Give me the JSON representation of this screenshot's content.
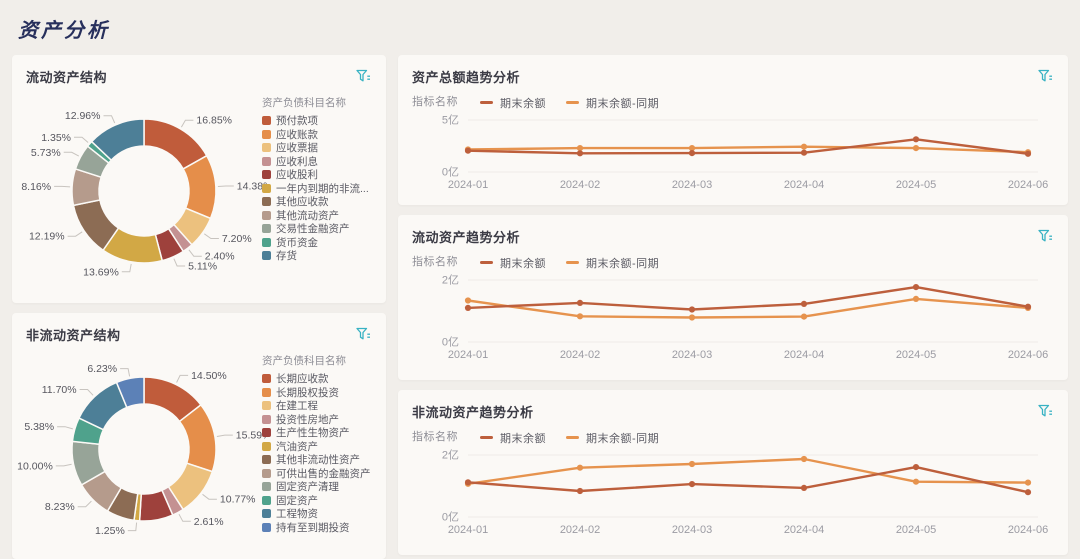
{
  "page": {
    "title": "资产分析"
  },
  "colors": {
    "background": "#f1eeea",
    "card": "#fbf9f6",
    "page_title": "#272f5c",
    "card_title": "#3b3b45",
    "accent_teal": "#38b2c3",
    "axis_label": "#9b9ba3",
    "pct_label": "#56565e",
    "legend_text": "#5b5b64",
    "legend_title_text": "#8d8d95",
    "grid_line": "#efece8",
    "leader_line": "#c8c4bf"
  },
  "chart_data": [
    {
      "type": "pie",
      "id": "current-asset-structure",
      "title": "流动资产结构",
      "legend_title": "资产负债科目名称",
      "slices": [
        {
          "label": "预付款项",
          "value": 16.85,
          "pct": "16.85%",
          "color": "#c05c3b",
          "pct_visible": true
        },
        {
          "label": "应收账款",
          "value": 14.38,
          "pct": "14.38%",
          "color": "#e58e4a",
          "pct_visible": true
        },
        {
          "label": "应收票据",
          "value": 7.2,
          "pct": "7.20%",
          "color": "#ecc17e",
          "pct_visible": true
        },
        {
          "label": "应收利息",
          "value": 2.4,
          "pct": "2.40%",
          "color": "#c49192",
          "pct_visible": true
        },
        {
          "label": "应收股利",
          "value": 5.11,
          "pct": "5.11%",
          "color": "#9e413c",
          "pct_visible": true
        },
        {
          "label": "一年内到期的非流...",
          "value": 13.69,
          "pct": "13.69%",
          "color": "#d2a845",
          "pct_visible": true
        },
        {
          "label": "其他应收款",
          "value": 12.19,
          "pct": "12.19%",
          "color": "#8c6c54",
          "pct_visible": true
        },
        {
          "label": "其他流动资产",
          "value": 8.16,
          "pct": "8.16%",
          "color": "#b59b8c",
          "pct_visible": true
        },
        {
          "label": "交易性金融资产",
          "value": 5.73,
          "pct": "5.73%",
          "color": "#97a498",
          "pct_visible": true
        },
        {
          "label": "货币资金",
          "value": 1.35,
          "pct": "1.35%",
          "color": "#4fa28c",
          "pct_visible": true
        },
        {
          "label": "存货",
          "value": 12.96,
          "pct": "12.96%",
          "color": "#4d7f97",
          "pct_visible": true
        }
      ]
    },
    {
      "type": "pie",
      "id": "non-current-asset-structure",
      "title": "非流动资产结构",
      "legend_title": "资产负债科目名称",
      "slices": [
        {
          "label": "长期应收款",
          "value": 14.5,
          "pct": "14.50%",
          "color": "#c05c3b",
          "pct_visible": true
        },
        {
          "label": "长期股权投资",
          "value": 15.59,
          "pct": "15.59%",
          "color": "#e58e4a",
          "pct_visible": true
        },
        {
          "label": "在建工程",
          "value": 10.77,
          "pct": "10.77%",
          "color": "#ecc17e",
          "pct_visible": true
        },
        {
          "label": "投资性房地产",
          "value": 2.61,
          "pct": "2.61%",
          "color": "#c49192",
          "pct_visible": true
        },
        {
          "label": "生产性生物资产",
          "value": 7.5,
          "pct": "",
          "color": "#9e413c",
          "pct_visible": false
        },
        {
          "label": "汽油资产",
          "value": 1.25,
          "pct": "1.25%",
          "color": "#d2a845",
          "pct_visible": true
        },
        {
          "label": "其他非流动性资产",
          "value": 6.24,
          "pct": "",
          "color": "#8c6c54",
          "pct_visible": false
        },
        {
          "label": "可供出售的金融资产",
          "value": 8.23,
          "pct": "8.23%",
          "color": "#b59b8c",
          "pct_visible": true
        },
        {
          "label": "固定资产清理",
          "value": 10.0,
          "pct": "10.00%",
          "color": "#97a498",
          "pct_visible": true
        },
        {
          "label": "固定资产",
          "value": 5.38,
          "pct": "5.38%",
          "color": "#4fa28c",
          "pct_visible": true
        },
        {
          "label": "工程物资",
          "value": 11.7,
          "pct": "11.70%",
          "color": "#4d7f97",
          "pct_visible": true
        },
        {
          "label": "持有至到期投资",
          "value": 6.23,
          "pct": "6.23%",
          "color": "#5c81b7",
          "pct_visible": true
        }
      ]
    },
    {
      "type": "line",
      "id": "total-asset-trend",
      "title": "资产总额趋势分析",
      "legend_title": "指标名称",
      "x": [
        "2024-01",
        "2024-02",
        "2024-03",
        "2024-04",
        "2024-05",
        "2024-06"
      ],
      "ymax": 5,
      "y_labels": [
        {
          "text": "5亿",
          "value": 5
        },
        {
          "text": "0亿",
          "value": 0
        }
      ],
      "series": [
        {
          "name": "期末余额",
          "color": "#bd5f3c",
          "values": [
            2.05,
            1.8,
            1.82,
            1.86,
            3.14,
            1.75
          ]
        },
        {
          "name": "期末余额-同期",
          "color": "#e6934e",
          "values": [
            2.16,
            2.3,
            2.3,
            2.43,
            2.3,
            1.9
          ]
        }
      ]
    },
    {
      "type": "line",
      "id": "current-asset-trend",
      "title": "流动资产趋势分析",
      "legend_title": "指标名称",
      "x": [
        "2024-01",
        "2024-02",
        "2024-03",
        "2024-04",
        "2024-05",
        "2024-06"
      ],
      "ymax": 2,
      "y_labels": [
        {
          "text": "2亿",
          "value": 2
        },
        {
          "text": "0亿",
          "value": 0
        }
      ],
      "series": [
        {
          "name": "期末余额",
          "color": "#bd5f3c",
          "values": [
            1.1,
            1.26,
            1.05,
            1.23,
            1.77,
            1.14
          ]
        },
        {
          "name": "期末余额-同期",
          "color": "#e6934e",
          "values": [
            1.34,
            0.83,
            0.79,
            0.82,
            1.39,
            1.1
          ]
        }
      ]
    },
    {
      "type": "line",
      "id": "non-current-asset-trend",
      "title": "非流动资产趋势分析",
      "legend_title": "指标名称",
      "x": [
        "2024-01",
        "2024-02",
        "2024-03",
        "2024-04",
        "2024-05",
        "2024-06"
      ],
      "ymax": 2,
      "y_labels": [
        {
          "text": "2亿",
          "value": 2
        },
        {
          "text": "0亿",
          "value": 0
        }
      ],
      "series": [
        {
          "name": "期末余额",
          "color": "#bd5f3c",
          "values": [
            1.12,
            0.84,
            1.06,
            0.94,
            1.61,
            0.8
          ]
        },
        {
          "name": "期末余额-同期",
          "color": "#e6934e",
          "values": [
            1.07,
            1.59,
            1.71,
            1.87,
            1.14,
            1.11
          ]
        }
      ]
    }
  ]
}
